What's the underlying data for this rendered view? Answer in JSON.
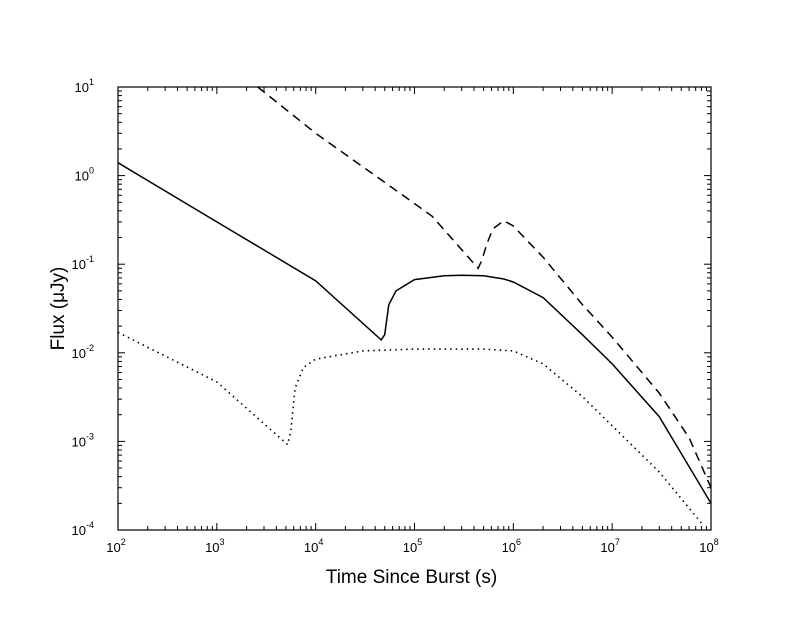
{
  "chart_data": {
    "type": "line",
    "title": "",
    "xlabel": "Time Since Burst (s)",
    "ylabel": "Flux (μJy)",
    "xscale": "log",
    "yscale": "log",
    "xlim": [
      100,
      100000000
    ],
    "ylim": [
      0.0001,
      10
    ],
    "grid": false,
    "x_ticks": [
      {
        "base": "10",
        "exp": "2",
        "value": 100
      },
      {
        "base": "10",
        "exp": "3",
        "value": 1000
      },
      {
        "base": "10",
        "exp": "4",
        "value": 10000
      },
      {
        "base": "10",
        "exp": "5",
        "value": 100000
      },
      {
        "base": "10",
        "exp": "6",
        "value": 1000000
      },
      {
        "base": "10",
        "exp": "7",
        "value": 10000000
      },
      {
        "base": "10",
        "exp": "8",
        "value": 100000000
      }
    ],
    "y_ticks": [
      {
        "base": "10",
        "exp": "-4",
        "value": 0.0001
      },
      {
        "base": "10",
        "exp": "-3",
        "value": 0.001
      },
      {
        "base": "10",
        "exp": "-2",
        "value": 0.01
      },
      {
        "base": "10",
        "exp": "-1",
        "value": 0.1
      },
      {
        "base": "10",
        "exp": "0",
        "value": 1
      },
      {
        "base": "10",
        "exp": "1",
        "value": 10
      }
    ],
    "series": [
      {
        "style": "dashed",
        "color": "#000000",
        "points": [
          [
            2600,
            10
          ],
          [
            10000,
            3.0
          ],
          [
            40000,
            1.0
          ],
          [
            150000,
            0.35
          ],
          [
            440000,
            0.09
          ],
          [
            480000,
            0.11
          ],
          [
            540000,
            0.17
          ],
          [
            620000,
            0.25
          ],
          [
            800000,
            0.31
          ],
          [
            1000000,
            0.27
          ],
          [
            2000000,
            0.12
          ],
          [
            5000000,
            0.035
          ],
          [
            10000000,
            0.015
          ],
          [
            30000000,
            0.0035
          ],
          [
            60000000,
            0.0011
          ],
          [
            100000000,
            0.0003
          ]
        ]
      },
      {
        "style": "solid",
        "color": "#000000",
        "points": [
          [
            100,
            1.4
          ],
          [
            1000,
            0.3
          ],
          [
            10000,
            0.065
          ],
          [
            46000,
            0.014
          ],
          [
            50000,
            0.016
          ],
          [
            55000,
            0.035
          ],
          [
            65000,
            0.05
          ],
          [
            100000,
            0.067
          ],
          [
            200000,
            0.074
          ],
          [
            300000,
            0.075
          ],
          [
            500000,
            0.074
          ],
          [
            800000,
            0.068
          ],
          [
            1000000,
            0.063
          ],
          [
            2000000,
            0.042
          ],
          [
            5000000,
            0.016
          ],
          [
            10000000,
            0.0075
          ],
          [
            30000000,
            0.0019
          ],
          [
            100000000,
            0.0002
          ]
        ]
      },
      {
        "style": "dotted",
        "color": "#000000",
        "points": [
          [
            100,
            0.017
          ],
          [
            1000,
            0.0047
          ],
          [
            5200,
            0.00092
          ],
          [
            5600,
            0.0013
          ],
          [
            6200,
            0.004
          ],
          [
            7500,
            0.0068
          ],
          [
            10000,
            0.0085
          ],
          [
            30000,
            0.0105
          ],
          [
            100000,
            0.011
          ],
          [
            500000,
            0.011
          ],
          [
            1000000,
            0.0105
          ],
          [
            2000000,
            0.0075
          ],
          [
            5000000,
            0.0032
          ],
          [
            10000000,
            0.0015
          ],
          [
            30000000,
            0.00045
          ],
          [
            80000000,
            0.00012
          ]
        ]
      }
    ]
  }
}
